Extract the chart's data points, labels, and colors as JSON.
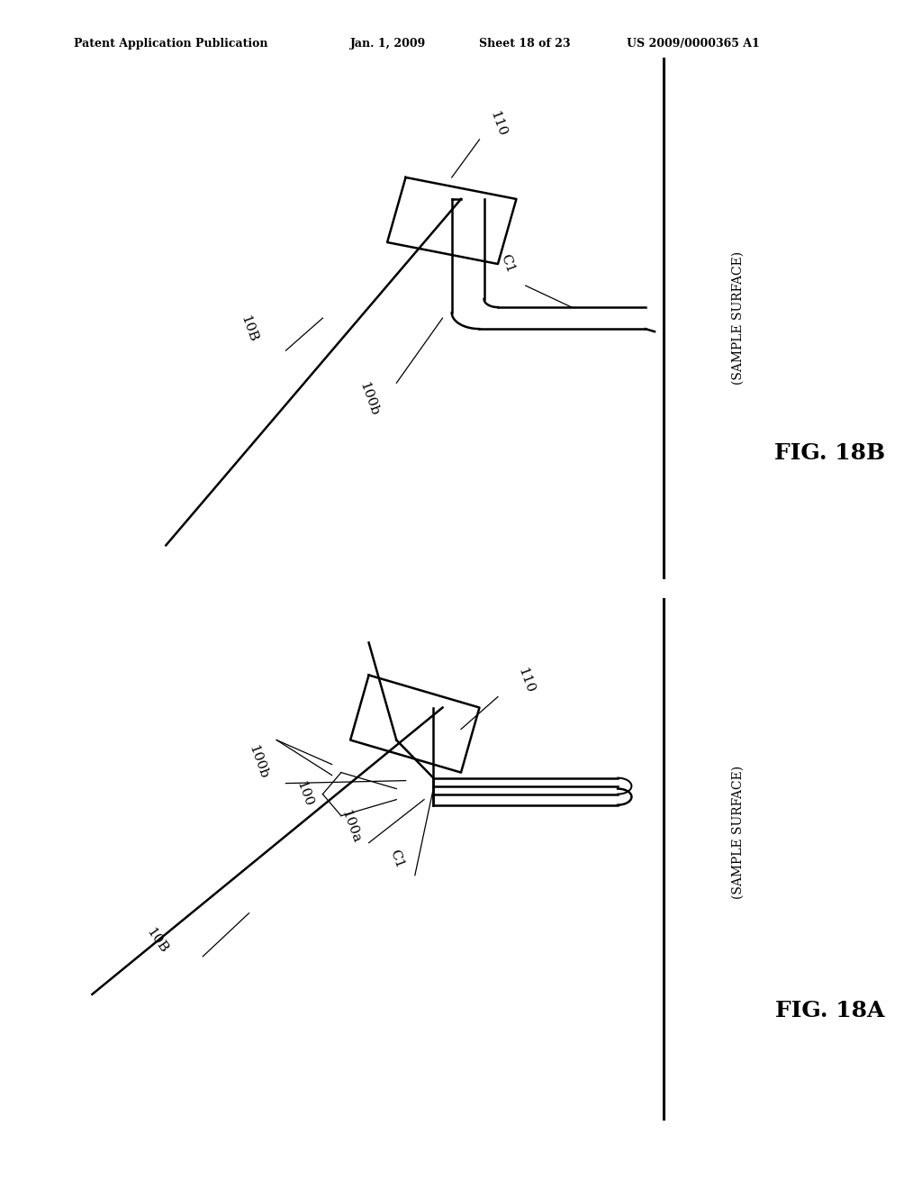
{
  "bg_color": "#ffffff",
  "header_text": "Patent Application Publication",
  "header_date": "Jan. 1, 2009",
  "header_sheet": "Sheet 18 of 23",
  "header_patent": "US 2009/0000365 A1",
  "fig_18A_label": "FIG. 18A",
  "fig_18B_label": "FIG. 18B",
  "sample_surface_label": "(SAMPLE SURFACE)",
  "label_10B": "10B",
  "label_100": "100",
  "label_100a": "100a",
  "label_100b": "100b",
  "label_c1": "C1",
  "label_110": "110",
  "line_color": "#000000",
  "lw_main": 1.8,
  "lw_surf": 2.2
}
